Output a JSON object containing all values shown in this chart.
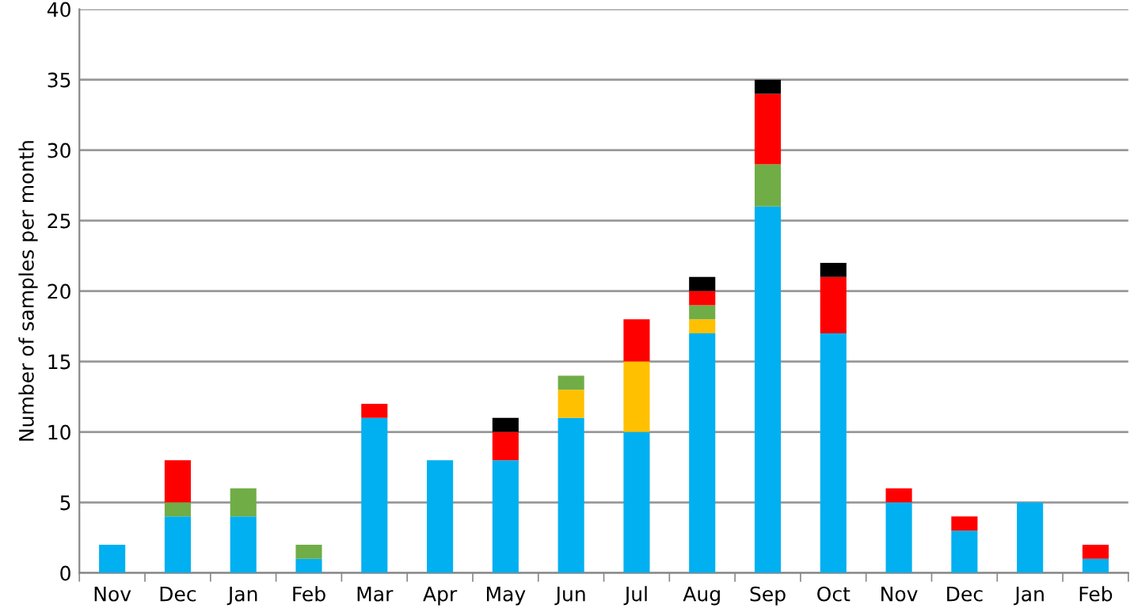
{
  "chart_data": {
    "type": "bar",
    "stacked": true,
    "ylabel": "Number of samples per month",
    "categories": [
      "Nov",
      "Dec",
      "Jan",
      "Feb",
      "Mar",
      "Apr",
      "May",
      "Jun",
      "Jul",
      "Aug",
      "Sep",
      "Oct",
      "Nov",
      "Dec",
      "Jan",
      "Feb"
    ],
    "series": [
      {
        "color": "#00b0f0",
        "values": [
          2,
          4,
          4,
          1,
          11,
          8,
          8,
          11,
          10,
          17,
          26,
          17,
          5,
          3,
          5,
          1
        ]
      },
      {
        "color": "#ffc000",
        "values": [
          0,
          0,
          0,
          0,
          0,
          0,
          0,
          2,
          5,
          1,
          0,
          0,
          0,
          0,
          0,
          0
        ]
      },
      {
        "color": "#70ad47",
        "values": [
          0,
          1,
          2,
          1,
          0,
          0,
          0,
          1,
          0,
          1,
          3,
          0,
          0,
          0,
          0,
          0
        ]
      },
      {
        "color": "#ff0000",
        "values": [
          0,
          3,
          0,
          0,
          1,
          0,
          2,
          0,
          3,
          1,
          5,
          4,
          1,
          1,
          0,
          1
        ]
      },
      {
        "color": "#000000",
        "values": [
          0,
          0,
          0,
          0,
          0,
          0,
          1,
          0,
          0,
          1,
          1,
          1,
          0,
          0,
          0,
          0
        ]
      }
    ],
    "ylim": [
      0,
      40
    ],
    "yticks": [
      0,
      5,
      10,
      15,
      20,
      25,
      30,
      35,
      40
    ],
    "grid": "y",
    "legend": false
  }
}
